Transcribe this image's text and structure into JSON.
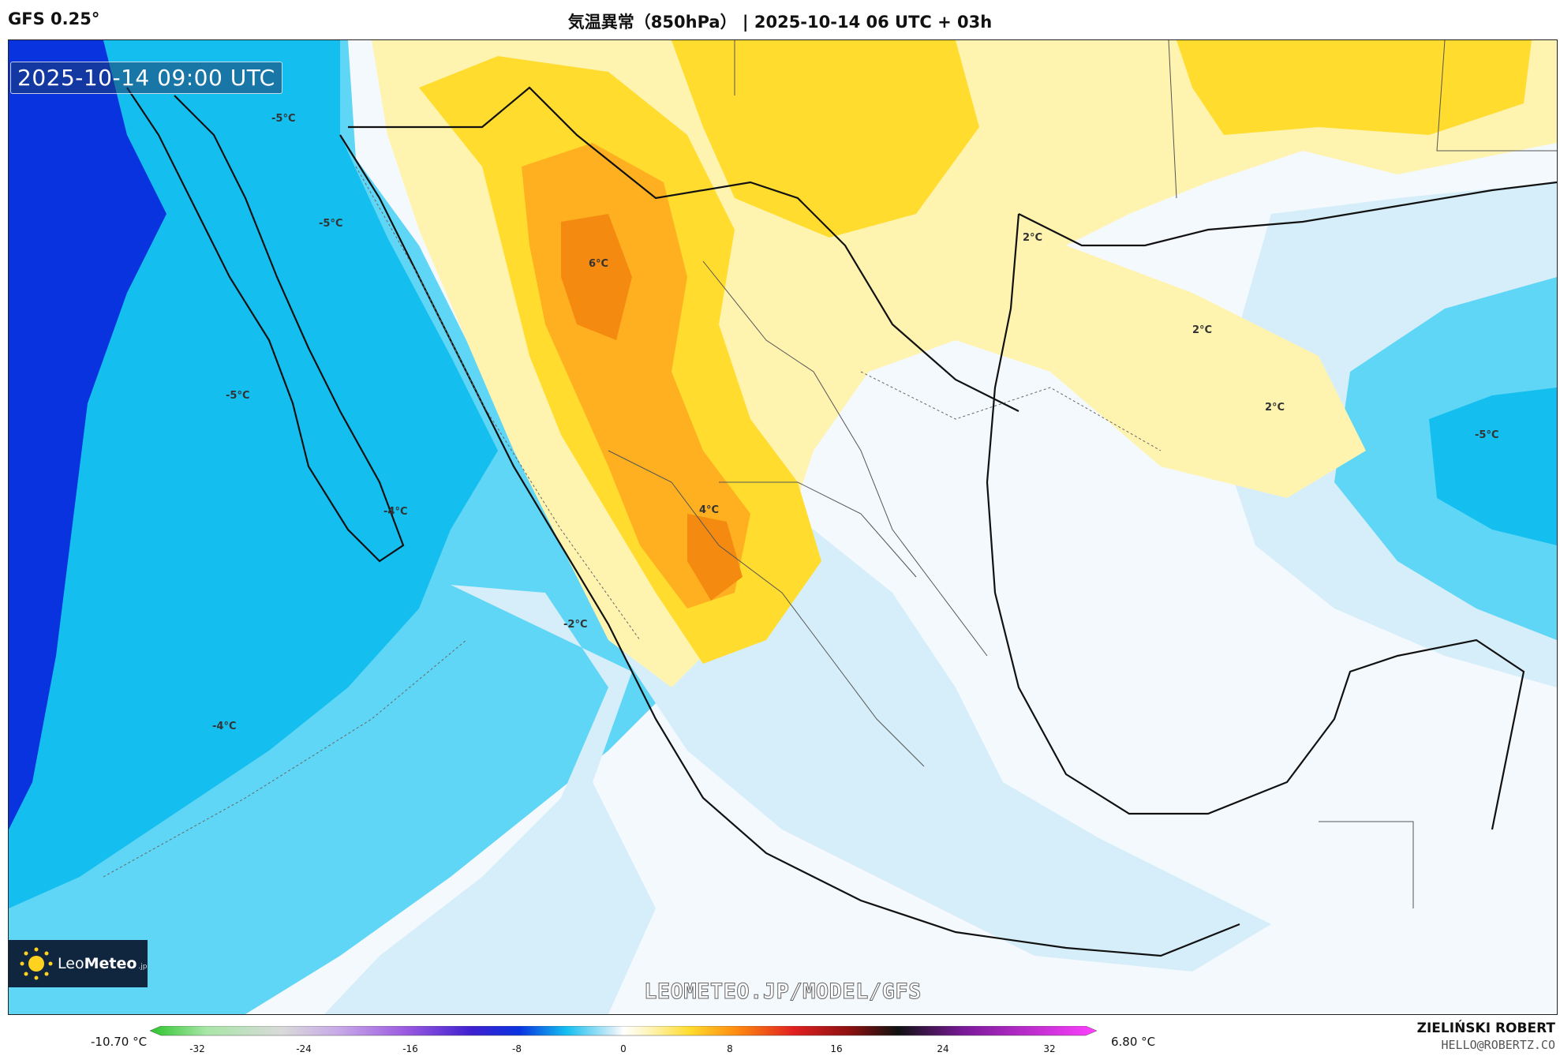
{
  "header": {
    "model": "GFS 0.25°",
    "title": "気温異常（850hPa） | 2025-10-14 06 UTC + 03h"
  },
  "map": {
    "valid_time": "2025-10-14 09:00 UTC",
    "watermark": "LEOMETEO.JP/MODEL/GFS",
    "logo": {
      "name": "Leo",
      "name_bold": "Meteo",
      "suffix": ".jp"
    },
    "contour_labels": [
      {
        "text": "-5°C"
      },
      {
        "text": "-5°C"
      },
      {
        "text": "6°C"
      },
      {
        "text": "2°C"
      },
      {
        "text": "2°C"
      },
      {
        "text": "2°C"
      },
      {
        "text": "-5°C"
      },
      {
        "text": "-5°C"
      },
      {
        "text": "-4°C"
      },
      {
        "text": "4°C"
      },
      {
        "text": "-2°C"
      },
      {
        "text": "-4°C"
      }
    ],
    "colors": {
      "deep_blue": "#0a33e0",
      "mid_blue": "#14bff0",
      "light_blue": "#5fd6f5",
      "pale_blue": "#d6eef9",
      "near_zero": "#f4f9fd",
      "pale_yellow": "#fff3b0",
      "yellow": "#ffdc2e",
      "orange": "#ffb020",
      "dark_orange": "#f58a10"
    }
  },
  "colorbar": {
    "min_label": "-10.70 °C",
    "max_label": "6.80 °C",
    "ticks": [
      "-32",
      "-24",
      "-16",
      "-8",
      "0",
      "8",
      "16",
      "24",
      "32"
    ]
  },
  "footer": {
    "author": "ZIELIŃSKI ROBERT",
    "email": "HELLO@ROBERTZ.CO"
  }
}
